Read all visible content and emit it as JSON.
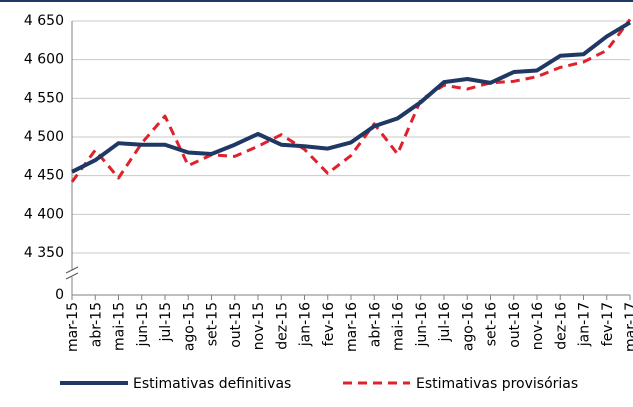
{
  "chart_data": {
    "type": "line",
    "categories": [
      "mar-15",
      "abr-15",
      "mai-15",
      "jun-15",
      "jul-15",
      "ago-15",
      "set-15",
      "out-15",
      "nov-15",
      "dez-15",
      "jan-16",
      "fev-16",
      "mar-16",
      "abr-16",
      "mai-16",
      "jun-16",
      "jul-16",
      "ago-16",
      "set-16",
      "out-16",
      "nov-16",
      "dez-16",
      "jan-17",
      "fev-17",
      "mar-17"
    ],
    "series": [
      {
        "name": "Estimativas definitivas",
        "color": "#1f3864",
        "values": [
          4455,
          4470,
          4492,
          4490,
          4490,
          4480,
          4478,
          4490,
          4504,
          4490,
          4488,
          4485,
          4493,
          4514,
          4524,
          4545,
          4571,
          4575,
          4570,
          4584,
          4586,
          4605,
          4607,
          4630,
          4648
        ]
      },
      {
        "name": "Estimativas provisórias",
        "color": "#e0202a",
        "values": [
          4442,
          4483,
          4447,
          4492,
          4527,
          4463,
          4477,
          4475,
          4488,
          4503,
          4484,
          4453,
          4476,
          4517,
          4478,
          4548,
          4567,
          4562,
          4570,
          4572,
          4578,
          4590,
          4597,
          4612,
          4652
        ]
      }
    ],
    "ylim": [
      0,
      4650
    ],
    "yticks": [
      0,
      {
        "value": 4350,
        "label": "4 350"
      },
      {
        "value": 4400,
        "label": "4 400"
      },
      {
        "value": 4450,
        "label": "4 450"
      },
      {
        "value": 4500,
        "label": "4 500"
      },
      {
        "value": 4550,
        "label": "4 550"
      },
      {
        "value": 4600,
        "label": "4 600"
      },
      {
        "value": 4650,
        "label": "4 650"
      }
    ],
    "axis_break": true,
    "grid": true
  }
}
